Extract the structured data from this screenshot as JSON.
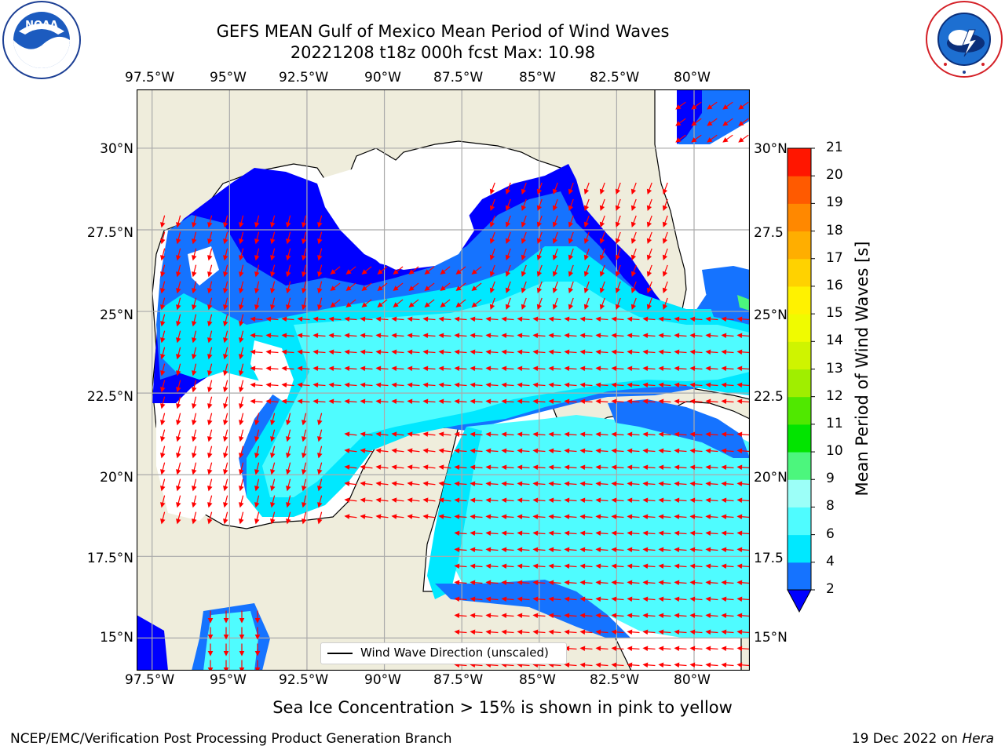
{
  "header": {
    "title_line1": "GEFS MEAN Gulf of Mexico Mean Period of Wind Waves",
    "title_line2": "20221208 t18z 000h fcst   Max: 10.98"
  },
  "logos": {
    "left": "NOAA",
    "left_ring_text": "NATIONAL OCEANIC AND ATMOSPHERIC ADMINISTRATION · U.S. DEPARTMENT OF COMMERCE",
    "right_ring_text": "NATIONAL WEATHER SERVICE"
  },
  "map": {
    "lon_ticks": [
      "97.5°W",
      "95°W",
      "92.5°W",
      "90°W",
      "87.5°W",
      "85°W",
      "82.5°W",
      "80°W"
    ],
    "lat_ticks_left": [
      "30°N",
      "27.5°N",
      "25°N",
      "22.5°N",
      "20°N",
      "17.5°N",
      "15°N"
    ],
    "lat_ticks_right": [
      "30°N",
      "27.5",
      "25°N",
      "22.5",
      "20°N",
      "17.5",
      "15°N"
    ],
    "lon_range": [
      -98,
      -78.2
    ],
    "lat_range": [
      14,
      31.8
    ],
    "legend_label": "Wind Wave Direction (unscaled)",
    "colors": {
      "land": "#efeddc",
      "ocean_missing": "#ffffff",
      "arrow": "#ff0000"
    }
  },
  "colorbar": {
    "label": "Mean Period of Wind Waves [s]",
    "ticks": [
      "2",
      "4",
      "6",
      "8",
      "9",
      "10",
      "11",
      "12",
      "13",
      "14",
      "15",
      "16",
      "17",
      "18",
      "19",
      "20",
      "21"
    ],
    "colors": [
      "#1573ff",
      "#00e8ff",
      "#4ffcff",
      "#9cfff8",
      "#4cf67d",
      "#02e400",
      "#50e800",
      "#a0ee00",
      "#cff400",
      "#f0fb00",
      "#fff200",
      "#ffd200",
      "#ffae00",
      "#ff8800",
      "#ff5a00",
      "#ff1600"
    ],
    "extend_min_color": "#0000ff"
  },
  "footer": {
    "sea_ice_note": "Sea Ice Concentration > 15% is shown in pink to yellow",
    "left": "NCEP/EMC/Verification Post Processing Product Generation Branch",
    "right_prefix": "19 Dec 2022 on ",
    "right_host": "Hera"
  }
}
